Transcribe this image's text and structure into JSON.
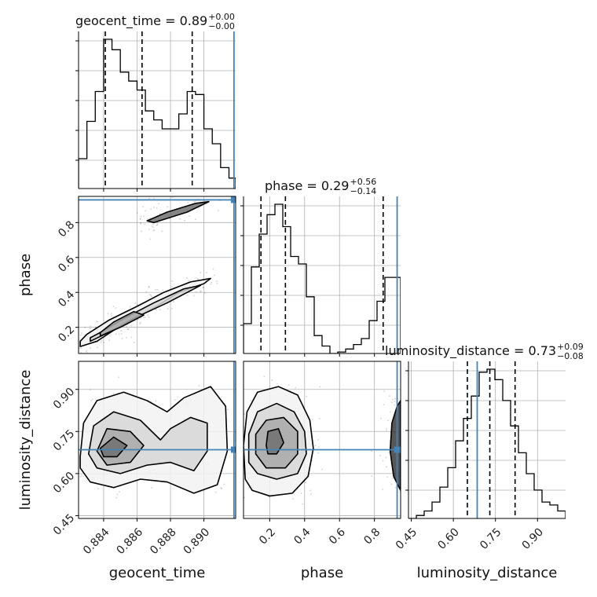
{
  "chart_data": {
    "type": "corner",
    "parameters": [
      "geocent_time",
      "phase",
      "luminosity_distance"
    ],
    "truths": {
      "geocent_time": 0.8918,
      "phase": 0.93,
      "luminosity_distance": 0.685
    },
    "truth_color": "#4682b4",
    "titles": [
      {
        "param": "geocent_time",
        "text": "geocent_time = 0.89",
        "plus": "+0.00",
        "minus": "−0.00"
      },
      {
        "param": "phase",
        "text": "phase = 0.29",
        "plus": "+0.56",
        "minus": "−0.14"
      },
      {
        "param": "luminosity_distance",
        "text": "luminosity_distance = 0.73",
        "plus": "+0.09",
        "minus": "−0.08"
      }
    ],
    "axes": {
      "geocent_time": {
        "range": [
          0.8825,
          0.8919
        ],
        "ticks": [
          0.884,
          0.886,
          0.888,
          0.89
        ],
        "tick_labels": [
          "0.884",
          "0.886",
          "0.888",
          "0.890"
        ]
      },
      "phase": {
        "range": [
          0.05,
          0.95
        ],
        "ticks": [
          0.2,
          0.4,
          0.6,
          0.8
        ],
        "tick_labels": [
          "0.2",
          "0.4",
          "0.6",
          "0.8"
        ]
      },
      "luminosity_distance": {
        "range": [
          0.44,
          1.0
        ],
        "ticks": [
          0.45,
          0.6,
          0.75,
          0.9
        ],
        "tick_labels": [
          "0.45",
          "0.60",
          "0.75",
          "0.90"
        ]
      }
    },
    "histograms": {
      "geocent_time": {
        "edges": [
          0.8825,
          0.883,
          0.8835,
          0.884,
          0.8845,
          0.885,
          0.8855,
          0.886,
          0.8865,
          0.887,
          0.8875,
          0.888,
          0.8885,
          0.889,
          0.8895,
          0.89,
          0.8905,
          0.891,
          0.8915,
          0.8919
        ],
        "counts": [
          0.2,
          0.45,
          0.65,
          1.0,
          0.93,
          0.78,
          0.72,
          0.66,
          0.52,
          0.46,
          0.4,
          0.4,
          0.5,
          0.65,
          0.63,
          0.4,
          0.3,
          0.14,
          0.07
        ],
        "quantiles": [
          0.8841,
          0.8863,
          0.8893
        ]
      },
      "phase": {
        "edges": [
          0.05,
          0.095,
          0.14,
          0.185,
          0.23,
          0.275,
          0.32,
          0.365,
          0.41,
          0.455,
          0.5,
          0.545,
          0.59,
          0.635,
          0.68,
          0.725,
          0.77,
          0.815,
          0.86,
          0.905,
          0.95
        ],
        "counts": [
          0.2,
          0.58,
          0.8,
          0.93,
          1.0,
          0.85,
          0.65,
          0.6,
          0.38,
          0.12,
          0.05,
          0.0,
          0.01,
          0.03,
          0.06,
          0.1,
          0.22,
          0.35,
          0.51,
          0.51
        ],
        "quantiles": [
          0.15,
          0.29,
          0.85
        ]
      },
      "luminosity_distance": {
        "edges": [
          0.44,
          0.468,
          0.496,
          0.524,
          0.552,
          0.58,
          0.608,
          0.636,
          0.664,
          0.692,
          0.72,
          0.748,
          0.776,
          0.804,
          0.832,
          0.86,
          0.888,
          0.916,
          0.944,
          0.972,
          1.0
        ],
        "counts": [
          0.0,
          0.02,
          0.05,
          0.11,
          0.21,
          0.34,
          0.52,
          0.67,
          0.82,
          0.98,
          1.0,
          0.93,
          0.79,
          0.62,
          0.44,
          0.3,
          0.19,
          0.11,
          0.09,
          0.05
        ],
        "quantiles": [
          0.65,
          0.73,
          0.82
        ]
      }
    },
    "contour_panels": [
      {
        "x": "geocent_time",
        "y": "phase",
        "levels": [
          [
            [
              0.8826,
              0.09
            ],
            [
              0.8836,
              0.12
            ],
            [
              0.8852,
              0.22
            ],
            [
              0.887,
              0.31
            ],
            [
              0.8885,
              0.4
            ],
            [
              0.89,
              0.45
            ],
            [
              0.8904,
              0.48
            ],
            [
              0.8892,
              0.46
            ],
            [
              0.8876,
              0.4
            ],
            [
              0.886,
              0.32
            ],
            [
              0.8843,
              0.24
            ],
            [
              0.883,
              0.16
            ],
            [
              0.8826,
              0.12
            ]
          ],
          [
            [
              0.8832,
              0.12
            ],
            [
              0.8845,
              0.18
            ],
            [
              0.886,
              0.26
            ],
            [
              0.8878,
              0.34
            ],
            [
              0.8894,
              0.42
            ],
            [
              0.8898,
              0.44
            ],
            [
              0.8888,
              0.42
            ],
            [
              0.887,
              0.34
            ],
            [
              0.8852,
              0.25
            ],
            [
              0.8838,
              0.17
            ],
            [
              0.8832,
              0.14
            ]
          ],
          [
            [
              0.8838,
              0.15
            ],
            [
              0.885,
              0.2
            ],
            [
              0.8864,
              0.27
            ],
            [
              0.8858,
              0.29
            ],
            [
              0.8846,
              0.23
            ],
            [
              0.8838,
              0.17
            ]
          ],
          [
            [
              0.887,
              0.8
            ],
            [
              0.889,
              0.86
            ],
            [
              0.8903,
              0.92
            ],
            [
              0.8895,
              0.91
            ],
            [
              0.8878,
              0.86
            ],
            [
              0.8866,
              0.81
            ],
            [
              0.887,
              0.8
            ]
          ]
        ]
      },
      {
        "x": "geocent_time",
        "y": "luminosity_distance",
        "levels": [
          [
            [
              0.8826,
              0.66
            ],
            [
              0.8828,
              0.78
            ],
            [
              0.8836,
              0.86
            ],
            [
              0.8852,
              0.89
            ],
            [
              0.8866,
              0.86
            ],
            [
              0.8878,
              0.82
            ],
            [
              0.8888,
              0.87
            ],
            [
              0.8904,
              0.91
            ],
            [
              0.8913,
              0.84
            ],
            [
              0.8914,
              0.68
            ],
            [
              0.8908,
              0.56
            ],
            [
              0.8894,
              0.53
            ],
            [
              0.8878,
              0.57
            ],
            [
              0.8862,
              0.58
            ],
            [
              0.8846,
              0.55
            ],
            [
              0.8832,
              0.57
            ],
            [
              0.8826,
              0.62
            ]
          ],
          [
            [
              0.8831,
              0.67
            ],
            [
              0.8834,
              0.77
            ],
            [
              0.8846,
              0.82
            ],
            [
              0.8862,
              0.79
            ],
            [
              0.8874,
              0.72
            ],
            [
              0.888,
              0.76
            ],
            [
              0.8892,
              0.8
            ],
            [
              0.8902,
              0.78
            ],
            [
              0.8902,
              0.68
            ],
            [
              0.8894,
              0.61
            ],
            [
              0.888,
              0.64
            ],
            [
              0.8866,
              0.63
            ],
            [
              0.885,
              0.6
            ],
            [
              0.8836,
              0.62
            ]
          ],
          [
            [
              0.8836,
              0.68
            ],
            [
              0.8842,
              0.76
            ],
            [
              0.8856,
              0.75
            ],
            [
              0.8864,
              0.7
            ],
            [
              0.8856,
              0.64
            ],
            [
              0.8842,
              0.63
            ]
          ],
          [
            [
              0.8838,
              0.69
            ],
            [
              0.8846,
              0.73
            ],
            [
              0.8854,
              0.7
            ],
            [
              0.8848,
              0.66
            ],
            [
              0.884,
              0.66
            ]
          ]
        ]
      },
      {
        "x": "phase",
        "y": "luminosity_distance",
        "levels": [
          [
            [
              0.06,
              0.58
            ],
            [
              0.05,
              0.7
            ],
            [
              0.07,
              0.82
            ],
            [
              0.13,
              0.89
            ],
            [
              0.25,
              0.91
            ],
            [
              0.36,
              0.88
            ],
            [
              0.43,
              0.79
            ],
            [
              0.45,
              0.69
            ],
            [
              0.42,
              0.59
            ],
            [
              0.33,
              0.53
            ],
            [
              0.2,
              0.52
            ],
            [
              0.1,
              0.54
            ],
            [
              0.06,
              0.58
            ]
          ],
          [
            [
              0.08,
              0.64
            ],
            [
              0.08,
              0.74
            ],
            [
              0.13,
              0.82
            ],
            [
              0.24,
              0.85
            ],
            [
              0.34,
              0.82
            ],
            [
              0.4,
              0.75
            ],
            [
              0.41,
              0.67
            ],
            [
              0.36,
              0.6
            ],
            [
              0.24,
              0.58
            ],
            [
              0.13,
              0.6
            ]
          ],
          [
            [
              0.12,
              0.67
            ],
            [
              0.12,
              0.74
            ],
            [
              0.18,
              0.79
            ],
            [
              0.28,
              0.8
            ],
            [
              0.36,
              0.75
            ],
            [
              0.36,
              0.67
            ],
            [
              0.29,
              0.62
            ],
            [
              0.18,
              0.62
            ]
          ],
          [
            [
              0.18,
              0.7
            ],
            [
              0.19,
              0.75
            ],
            [
              0.25,
              0.76
            ],
            [
              0.28,
              0.71
            ],
            [
              0.24,
              0.67
            ],
            [
              0.19,
              0.67
            ]
          ],
          [
            [
              0.95,
              0.54
            ],
            [
              0.91,
              0.59
            ],
            [
              0.89,
              0.68
            ],
            [
              0.9,
              0.78
            ],
            [
              0.93,
              0.84
            ],
            [
              0.95,
              0.86
            ]
          ]
        ]
      }
    ]
  }
}
